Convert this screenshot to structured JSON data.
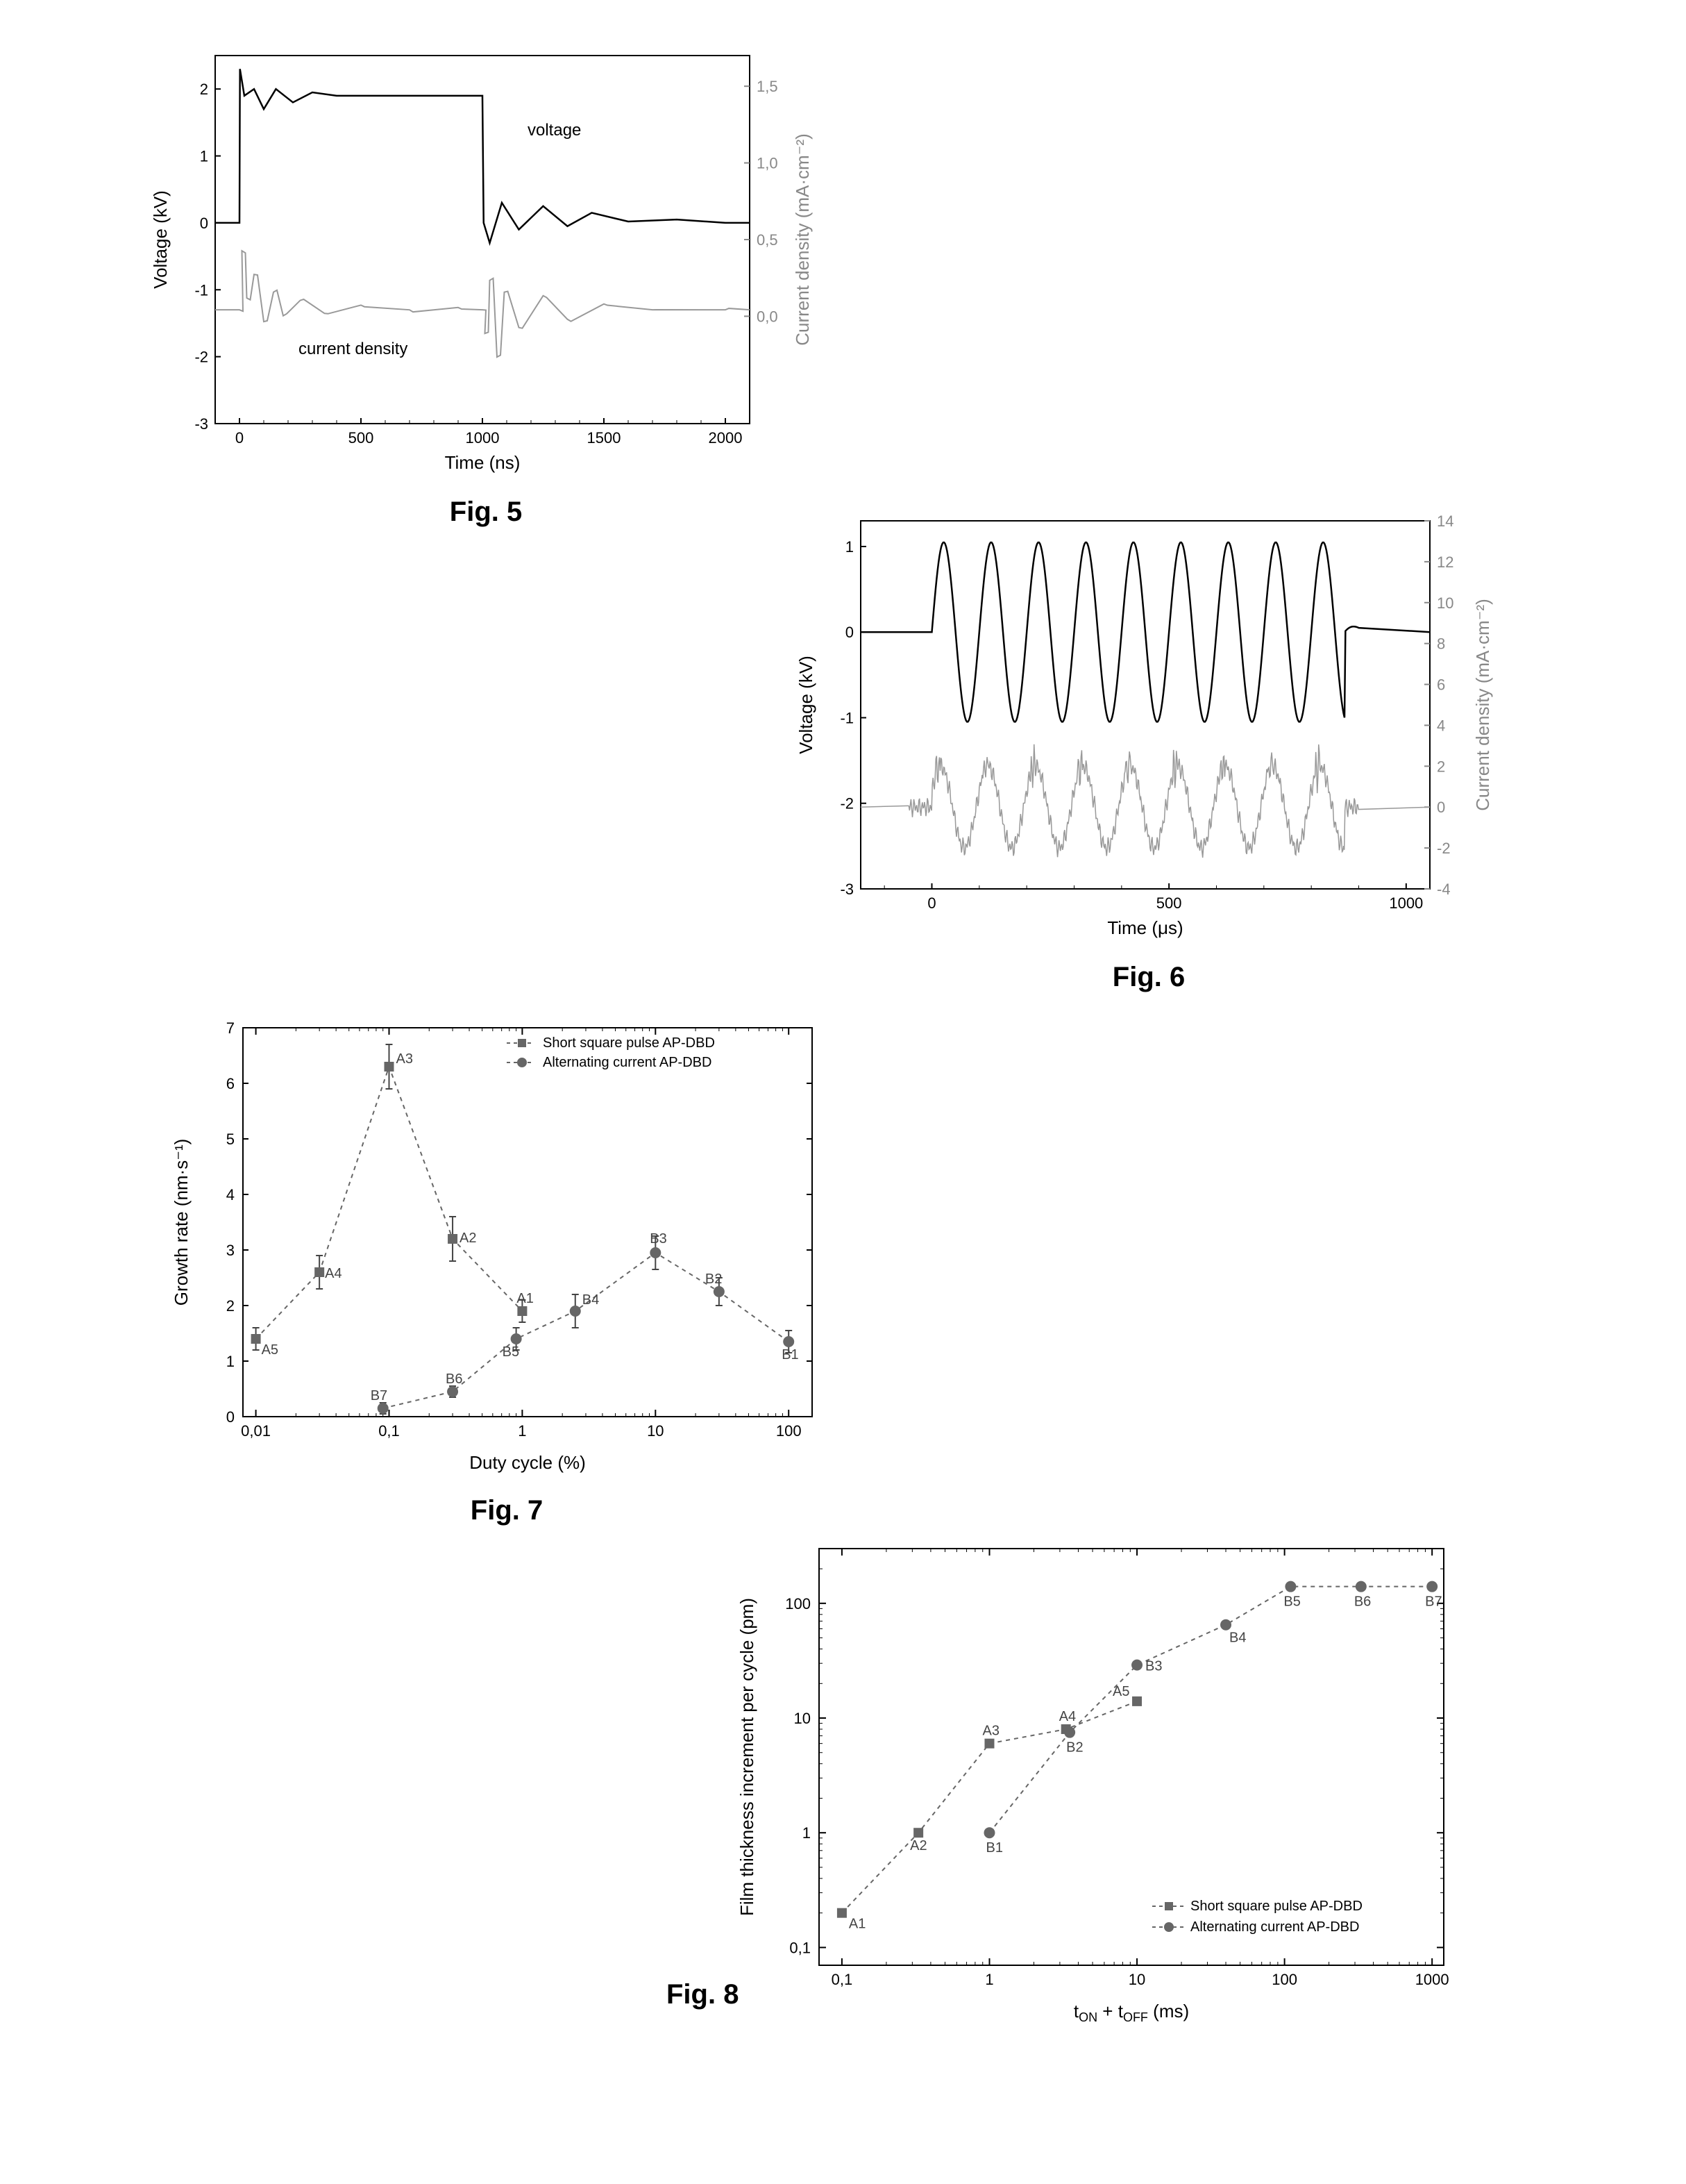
{
  "fig5": {
    "label": "Fig. 5",
    "xlabel": "Time (ns)",
    "ylabel_left": "Voltage (kV)",
    "ylabel_right": "Current density (mA·cm⁻²)",
    "xlim": [
      -100,
      2100
    ],
    "ylim_left": [
      -3,
      2.5
    ],
    "ylim_right": [
      -0.7,
      1.7
    ],
    "xticks": [
      0,
      500,
      1000,
      1500,
      2000
    ],
    "yticks_left": [
      -3,
      -2,
      -1,
      0,
      1,
      2
    ],
    "yticks_right": [
      "0,0",
      "0,5",
      "1,0",
      "1,5"
    ],
    "yticks_right_vals": [
      0.0,
      0.5,
      1.0,
      1.5
    ],
    "annotation_voltage": "voltage",
    "annotation_current": "current density",
    "voltage_color": "#000000",
    "current_color": "#999999",
    "voltage_data": [
      [
        -100,
        0
      ],
      [
        0,
        0
      ],
      [
        2,
        2.3
      ],
      [
        20,
        1.9
      ],
      [
        60,
        2.0
      ],
      [
        100,
        1.7
      ],
      [
        150,
        2.0
      ],
      [
        220,
        1.8
      ],
      [
        300,
        1.95
      ],
      [
        400,
        1.9
      ],
      [
        500,
        1.9
      ],
      [
        700,
        1.9
      ],
      [
        900,
        1.9
      ],
      [
        1000,
        1.9
      ],
      [
        1005,
        0.0
      ],
      [
        1030,
        -0.3
      ],
      [
        1080,
        0.3
      ],
      [
        1150,
        -0.1
      ],
      [
        1250,
        0.25
      ],
      [
        1350,
        -0.05
      ],
      [
        1450,
        0.15
      ],
      [
        1600,
        0.02
      ],
      [
        1800,
        0.05
      ],
      [
        2000,
        0.0
      ],
      [
        2100,
        0.0
      ]
    ],
    "current_data": [
      [
        -100,
        0
      ],
      [
        0,
        0
      ],
      [
        10,
        0.5
      ],
      [
        30,
        0.1
      ],
      [
        60,
        0.3
      ],
      [
        100,
        -0.1
      ],
      [
        140,
        0.15
      ],
      [
        180,
        -0.05
      ],
      [
        250,
        0.08
      ],
      [
        350,
        -0.03
      ],
      [
        500,
        0.04
      ],
      [
        700,
        0.0
      ],
      [
        900,
        0.02
      ],
      [
        1000,
        0.0
      ],
      [
        1010,
        -0.2
      ],
      [
        1030,
        0.25
      ],
      [
        1060,
        -0.4
      ],
      [
        1090,
        0.15
      ],
      [
        1150,
        -0.15
      ],
      [
        1250,
        0.12
      ],
      [
        1350,
        -0.08
      ],
      [
        1500,
        0.05
      ],
      [
        1700,
        0.0
      ],
      [
        2000,
        0.0
      ],
      [
        2100,
        0.0
      ]
    ]
  },
  "fig6": {
    "label": "Fig. 6",
    "xlabel": "Time (μs)",
    "ylabel_left": "Voltage (kV)",
    "ylabel_right": "Current density (mA·cm⁻²)",
    "xlim": [
      -150,
      1050
    ],
    "ylim_left": [
      -3,
      1.3
    ],
    "xticks": [
      0,
      500,
      1000
    ],
    "yticks_left": [
      -3,
      -2,
      -1,
      0,
      1
    ],
    "yticks_right": [
      -4,
      -2,
      0,
      2,
      4,
      6,
      8,
      10,
      12,
      14
    ],
    "voltage_color": "#000000",
    "current_color": "#999999"
  },
  "fig7": {
    "label": "Fig. 7",
    "xlabel": "Duty cycle (%)",
    "ylabel": "Growth rate (nm·s⁻¹)",
    "xlim_log": [
      0.008,
      150
    ],
    "ylim": [
      0,
      7
    ],
    "xticks": [
      0.01,
      0.1,
      1,
      10,
      100
    ],
    "xticks_labels": [
      "0,01",
      "0,1",
      "1",
      "10",
      "100"
    ],
    "yticks": [
      0,
      1,
      2,
      3,
      4,
      5,
      6,
      7
    ],
    "legend": {
      "series_a": "Short square pulse AP-DBD",
      "series_b": "Alternating  current AP-DBD",
      "marker_a": "square",
      "marker_b": "circle"
    },
    "marker_color": "#666666",
    "line_color": "#666666",
    "series_a": [
      {
        "label": "A5",
        "x": 0.01,
        "y": 1.4,
        "err": 0.2
      },
      {
        "label": "A4",
        "x": 0.03,
        "y": 2.6,
        "err": 0.3
      },
      {
        "label": "A3",
        "x": 0.1,
        "y": 6.3,
        "err": 0.4
      },
      {
        "label": "A2",
        "x": 0.3,
        "y": 3.2,
        "err": 0.4
      },
      {
        "label": "A1",
        "x": 1.0,
        "y": 1.9,
        "err": 0.2
      }
    ],
    "series_b": [
      {
        "label": "B7",
        "x": 0.09,
        "y": 0.15,
        "err": 0.1
      },
      {
        "label": "B6",
        "x": 0.3,
        "y": 0.45,
        "err": 0.1
      },
      {
        "label": "B5",
        "x": 0.9,
        "y": 1.4,
        "err": 0.2
      },
      {
        "label": "B4",
        "x": 2.5,
        "y": 1.9,
        "err": 0.3
      },
      {
        "label": "B3",
        "x": 10,
        "y": 2.95,
        "err": 0.3
      },
      {
        "label": "B2",
        "x": 30,
        "y": 2.25,
        "err": 0.25
      },
      {
        "label": "B1",
        "x": 100,
        "y": 1.35,
        "err": 0.2
      }
    ]
  },
  "fig8": {
    "label": "Fig. 8",
    "xlabel_prefix": "t",
    "xlabel_on": "ON",
    "xlabel_plus": " + t",
    "xlabel_off": "OFF",
    "xlabel_unit": " (ms)",
    "ylabel": "Film thickness increment per cycle (pm)",
    "xlim_log": [
      0.07,
      1200
    ],
    "ylim_log": [
      0.07,
      300
    ],
    "xticks": [
      0.1,
      1,
      10,
      100,
      1000
    ],
    "xticks_labels": [
      "0,1",
      "1",
      "10",
      "100",
      "1000"
    ],
    "yticks": [
      0.1,
      1,
      10,
      100
    ],
    "yticks_labels": [
      "0,1",
      "1",
      "10",
      "100"
    ],
    "legend": {
      "series_a": "Short square pulse AP-DBD",
      "series_b": "Alternating  current AP-DBD",
      "marker_a": "square",
      "marker_b": "circle"
    },
    "marker_color": "#666666",
    "line_color": "#666666",
    "series_a": [
      {
        "label": "A1",
        "x": 0.1,
        "y": 0.2
      },
      {
        "label": "A2",
        "x": 0.33,
        "y": 1.0
      },
      {
        "label": "A3",
        "x": 1.0,
        "y": 6.0
      },
      {
        "label": "A4",
        "x": 3.3,
        "y": 8.0
      },
      {
        "label": "A5",
        "x": 10,
        "y": 14
      }
    ],
    "series_b": [
      {
        "label": "B1",
        "x": 1.0,
        "y": 1.0
      },
      {
        "label": "B2",
        "x": 3.5,
        "y": 7.5
      },
      {
        "label": "B3",
        "x": 10,
        "y": 29
      },
      {
        "label": "B4",
        "x": 40,
        "y": 65
      },
      {
        "label": "B5",
        "x": 110,
        "y": 140
      },
      {
        "label": "B6",
        "x": 330,
        "y": 140
      },
      {
        "label": "B7",
        "x": 1000,
        "y": 140
      }
    ]
  }
}
